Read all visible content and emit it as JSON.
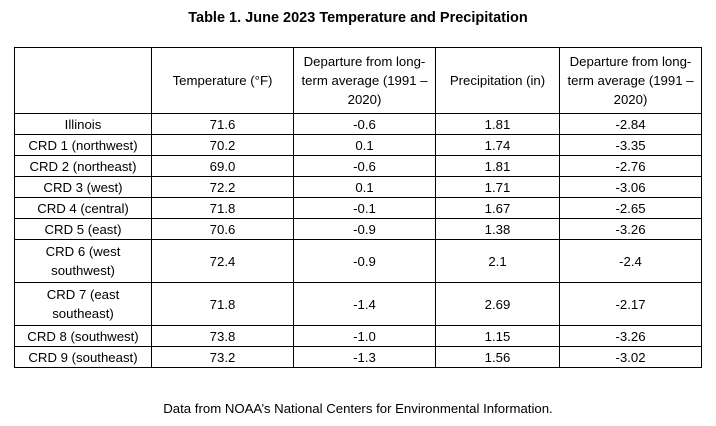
{
  "title": "Table 1.  June 2023 Temperature and Precipitation",
  "table": {
    "headers": [
      "",
      "Temperature (°F)",
      "Departure from long-term average (1991 – 2020)",
      "Precipitation (in)",
      "Departure from long-term average (1991 – 2020)"
    ],
    "rows": [
      [
        "Illinois",
        "71.6",
        "-0.6",
        "1.81",
        "-2.84"
      ],
      [
        "CRD 1 (northwest)",
        "70.2",
        "0.1",
        "1.74",
        "-3.35"
      ],
      [
        "CRD 2 (northeast)",
        "69.0",
        "-0.6",
        "1.81",
        "-2.76"
      ],
      [
        "CRD 3 (west)",
        "72.2",
        "0.1",
        "1.71",
        "-3.06"
      ],
      [
        "CRD 4 (central)",
        "71.8",
        "-0.1",
        "1.67",
        "-2.65"
      ],
      [
        "CRD 5 (east)",
        "70.6",
        "-0.9",
        "1.38",
        "-3.26"
      ],
      [
        "CRD 6 (west southwest)",
        "72.4",
        "-0.9",
        "2.1",
        "-2.4"
      ],
      [
        "CRD 7 (east southeast)",
        "71.8",
        "-1.4",
        "2.69",
        "-2.17"
      ],
      [
        "CRD 8 (southwest)",
        "73.8",
        "-1.0",
        "1.15",
        "-3.26"
      ],
      [
        "CRD 9 (southeast)",
        "73.2",
        "-1.3",
        "1.56",
        "-3.02"
      ]
    ]
  },
  "footnote": "Data from NOAA’s National Centers for Environmental Information."
}
